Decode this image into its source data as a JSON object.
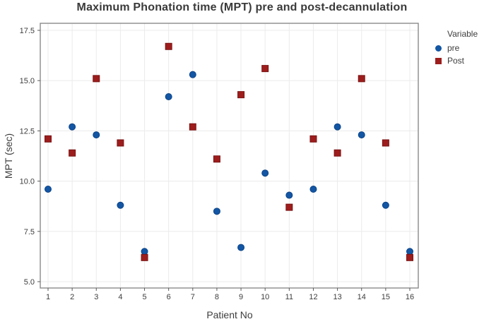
{
  "title": "Maximum Phonation time (MPT) pre and post-decannulation",
  "axes": {
    "x_label": "Patient No",
    "y_label": "MPT (sec)"
  },
  "legend": {
    "title": "Variable",
    "items": [
      {
        "label": "pre",
        "marker": "circle"
      },
      {
        "label": "Post",
        "marker": "square"
      }
    ]
  },
  "palette": {
    "grid": "#ebebeb",
    "frame": "#8a8a8a",
    "tick": "#5a5a5a",
    "text": "#3d3d3d",
    "title": "#3a3a3a",
    "pre_fill": "#1356a4",
    "pre_edge": "#0c4487",
    "post_fill": "#9d1d1d",
    "post_edge": "#791212"
  },
  "chart_data": {
    "type": "scatter",
    "title": "Maximum Phonation time (MPT) pre and post-decannulation",
    "xlabel": "Patient No",
    "ylabel": "MPT (sec)",
    "legend_title": "Variable",
    "legend_position": "right",
    "grid": true,
    "ylim": [
      5.0,
      17.5
    ],
    "yticks": [
      5.0,
      7.5,
      10.0,
      12.5,
      15.0,
      17.5
    ],
    "categories": [
      1,
      2,
      3,
      4,
      5,
      6,
      7,
      8,
      9,
      10,
      11,
      12,
      13,
      14,
      15,
      16
    ],
    "series": [
      {
        "name": "pre",
        "marker": "circle",
        "color": "#1356a4",
        "edge_color": "#0c4487",
        "values": [
          9.6,
          12.7,
          12.3,
          8.8,
          6.5,
          14.2,
          15.3,
          8.5,
          6.7,
          10.4,
          9.3,
          9.6,
          12.7,
          12.3,
          8.8,
          6.5
        ]
      },
      {
        "name": "Post",
        "marker": "square",
        "color": "#9d1d1d",
        "edge_color": "#791212",
        "values": [
          12.1,
          11.4,
          15.1,
          11.9,
          6.2,
          16.7,
          12.7,
          11.1,
          14.3,
          15.6,
          8.7,
          12.1,
          11.4,
          15.1,
          11.9,
          6.2
        ]
      }
    ]
  }
}
